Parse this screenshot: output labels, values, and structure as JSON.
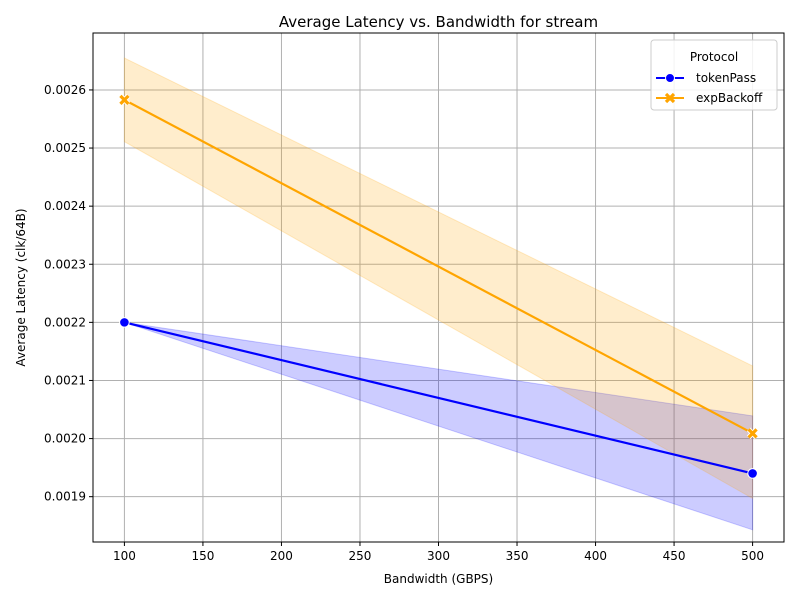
{
  "colors": {
    "tokenPass": "#0000ff",
    "expBackoff": "#ffa500",
    "grid": "#b0b0b0",
    "axis": "#000000"
  },
  "chart_data": {
    "type": "line",
    "title": "Average Latency vs. Bandwidth for stream",
    "xlabel": "Bandwidth (GBPS)",
    "ylabel": "Average Latency (clk/64B)",
    "xlim": [
      80,
      520
    ],
    "ylim": [
      0.001822,
      0.002698
    ],
    "x_ticks": [
      100,
      150,
      200,
      250,
      300,
      350,
      400,
      450,
      500
    ],
    "x_tick_labels": [
      "100",
      "150",
      "200",
      "250",
      "300",
      "350",
      "400",
      "450",
      "500"
    ],
    "y_ticks": [
      0.0019,
      0.002,
      0.0021,
      0.0022,
      0.0023,
      0.0024,
      0.0025,
      0.0026
    ],
    "y_tick_labels": [
      "0.0019",
      "0.0020",
      "0.0021",
      "0.0022",
      "0.0023",
      "0.0024",
      "0.0025",
      "0.0026"
    ],
    "grid": true,
    "legend": {
      "title": "Protocol",
      "position": "top-right"
    },
    "series": [
      {
        "name": "tokenPass",
        "marker": "circle",
        "color": "#0000ff",
        "x": [
          100,
          500
        ],
        "y": [
          0.0022,
          0.00194
        ],
        "ci_lower": [
          0.0022,
          0.001843
        ],
        "ci_upper": [
          0.0022,
          0.002039
        ]
      },
      {
        "name": "expBackoff",
        "marker": "x",
        "color": "#ffa500",
        "x": [
          100,
          500
        ],
        "y": [
          0.002583,
          0.002009
        ],
        "ci_lower": [
          0.002511,
          0.001897
        ],
        "ci_upper": [
          0.002655,
          0.002125
        ]
      }
    ]
  }
}
